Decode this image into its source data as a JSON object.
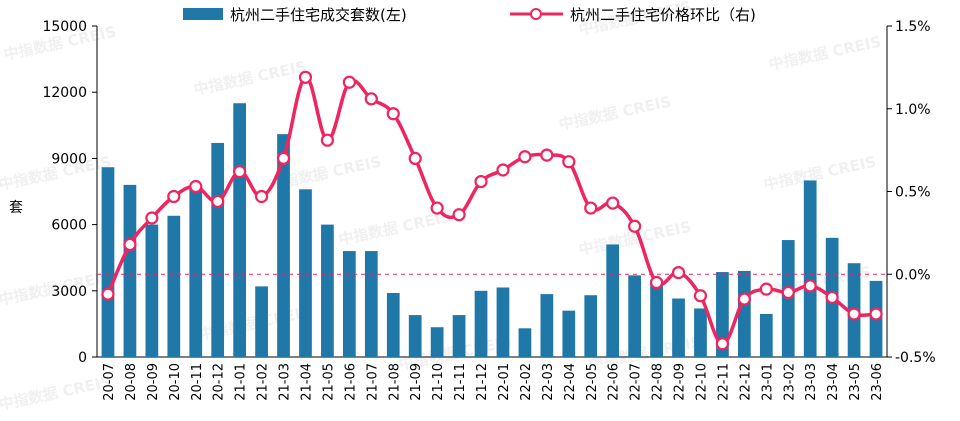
{
  "chart_data": {
    "type": "bar+line",
    "categories": [
      "20-07",
      "20-08",
      "20-09",
      "20-10",
      "20-11",
      "20-12",
      "21-01",
      "21-02",
      "21-03",
      "21-04",
      "21-05",
      "21-06",
      "21-07",
      "21-08",
      "21-09",
      "21-10",
      "21-11",
      "21-12",
      "22-01",
      "22-02",
      "22-03",
      "22-04",
      "22-05",
      "22-06",
      "22-07",
      "22-08",
      "22-09",
      "22-10",
      "22-11",
      "22-12",
      "23-01",
      "23-02",
      "23-03",
      "23-04",
      "23-05",
      "23-06"
    ],
    "series": [
      {
        "name": "杭州二手住宅成交套数(左)",
        "type": "bar",
        "axis": "left",
        "color": "#1f78a8",
        "values": [
          8600,
          7800,
          6000,
          6400,
          7700,
          9700,
          11500,
          3200,
          10100,
          7600,
          6000,
          4800,
          4800,
          2900,
          1900,
          1350,
          1900,
          3000,
          3150,
          1300,
          2850,
          2100,
          2800,
          5100,
          3700,
          3500,
          2650,
          2200,
          3850,
          3900,
          1950,
          5300,
          8000,
          5400,
          4250,
          3450
        ]
      },
      {
        "name": "杭州二手住宅价格环比（右)",
        "type": "line",
        "axis": "right",
        "color": "#f0245f",
        "values": [
          -0.12,
          0.18,
          0.34,
          0.47,
          0.53,
          0.44,
          0.62,
          0.47,
          0.7,
          1.19,
          0.81,
          1.16,
          1.06,
          0.97,
          0.7,
          0.4,
          0.36,
          0.56,
          0.63,
          0.71,
          0.72,
          0.68,
          0.4,
          0.43,
          0.29,
          -0.05,
          0.01,
          -0.13,
          -0.42,
          -0.15,
          -0.09,
          -0.11,
          -0.07,
          -0.14,
          -0.24,
          -0.24
        ]
      }
    ],
    "yleft": {
      "label": "套",
      "ticks": [
        "0",
        "3000",
        "6000",
        "9000",
        "12000",
        "15000"
      ],
      "range": [
        0,
        15000
      ]
    },
    "yright": {
      "ticks": [
        "-0.5%",
        "0.0%",
        "0.5%",
        "1.0%",
        "1.5%"
      ],
      "range": [
        -0.5,
        1.5
      ]
    },
    "zero_line": "dashed",
    "grid": false,
    "legend": "top"
  },
  "watermark": "中指数据 CREIS"
}
